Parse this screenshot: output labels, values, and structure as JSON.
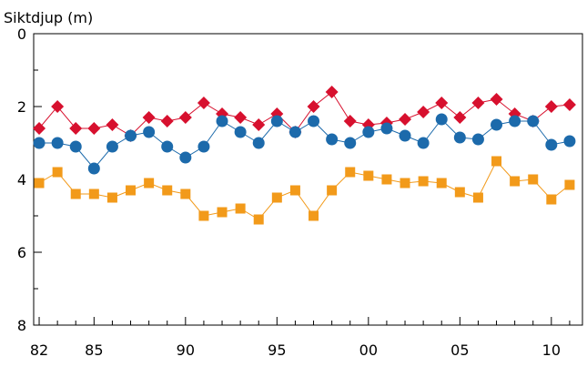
{
  "chart_data": {
    "type": "line",
    "title": "",
    "ylabel": "Siktdjup (m)",
    "xlabel": "",
    "y_inverted": true,
    "ylim": [
      0,
      8
    ],
    "xlim": [
      1981.7,
      2011.7
    ],
    "yticks_major": [
      0,
      2,
      4,
      6,
      8
    ],
    "yticks_minor": [
      1,
      3,
      5,
      7
    ],
    "xtick_labels": [
      {
        "x": 1982,
        "label": "82"
      },
      {
        "x": 1985,
        "label": "85"
      },
      {
        "x": 1990,
        "label": "90"
      },
      {
        "x": 1995,
        "label": "95"
      },
      {
        "x": 2000,
        "label": "00"
      },
      {
        "x": 2005,
        "label": "05"
      },
      {
        "x": 2010,
        "label": "10"
      }
    ],
    "grid": false,
    "x": [
      1982,
      1983,
      1984,
      1985,
      1986,
      1987,
      1988,
      1989,
      1990,
      1991,
      1992,
      1993,
      1994,
      1995,
      1996,
      1997,
      1998,
      1999,
      2000,
      2001,
      2002,
      2003,
      2004,
      2005,
      2006,
      2007,
      2008,
      2009,
      2010,
      2011
    ],
    "series": [
      {
        "marker": "diamond",
        "color": "#d7102e",
        "values": [
          2.6,
          2.0,
          2.6,
          2.6,
          2.5,
          2.8,
          2.3,
          2.4,
          2.3,
          1.9,
          2.2,
          2.3,
          2.5,
          2.2,
          2.7,
          2.0,
          1.6,
          2.4,
          2.5,
          2.45,
          2.35,
          2.15,
          1.9,
          2.3,
          1.9,
          1.8,
          2.2,
          2.4,
          2.0,
          1.95
        ]
      },
      {
        "marker": "circle",
        "color": "#1c6aab",
        "values": [
          3.0,
          3.0,
          3.1,
          3.7,
          3.1,
          2.8,
          2.7,
          3.1,
          3.4,
          3.1,
          2.4,
          2.7,
          3.0,
          2.4,
          2.7,
          2.4,
          2.9,
          3.0,
          2.7,
          2.6,
          2.8,
          3.0,
          2.35,
          2.85,
          2.9,
          2.5,
          2.4,
          2.4,
          3.05,
          2.95
        ]
      },
      {
        "marker": "square",
        "color": "#f29a1a",
        "values": [
          4.1,
          3.8,
          4.4,
          4.4,
          4.5,
          4.3,
          4.1,
          4.3,
          4.4,
          5.0,
          4.9,
          4.8,
          5.1,
          4.5,
          4.3,
          5.0,
          4.3,
          3.8,
          3.9,
          4.0,
          4.1,
          4.05,
          4.1,
          4.35,
          4.5,
          3.5,
          4.05,
          4.0,
          4.55,
          4.15
        ]
      }
    ]
  }
}
